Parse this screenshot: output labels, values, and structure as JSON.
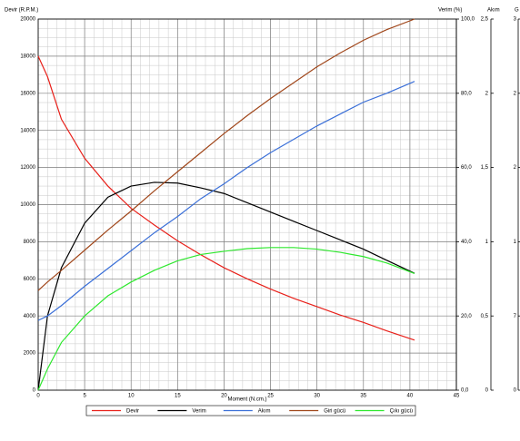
{
  "chart_data": {
    "type": "line",
    "ylabel": "Devir (R.P.M.)",
    "y2label": "Verim (%)",
    "y3label": "Akım",
    "y4label": "G",
    "xlabel": "Moment (N.cm.)",
    "x": [
      0,
      1,
      2.5,
      5,
      7.5,
      10,
      12.5,
      15,
      17.5,
      20,
      22.5,
      25,
      27.5,
      30,
      32.5,
      35,
      37.5,
      40.5
    ],
    "xlim": [
      0,
      45
    ],
    "xticks": [
      0,
      5,
      10,
      15,
      20,
      25,
      30,
      35,
      40,
      45
    ],
    "ylim": [
      0,
      20000
    ],
    "yticks": [
      0,
      2000,
      4000,
      6000,
      8000,
      10000,
      12000,
      14000,
      16000,
      18000,
      20000
    ],
    "y2lim": [
      0,
      100
    ],
    "y2ticks": [
      {
        "value": 0,
        "label": "0,0"
      },
      {
        "value": 20,
        "label": "20,0"
      },
      {
        "value": 40,
        "label": "40,0"
      },
      {
        "value": 60,
        "label": "60,0"
      },
      {
        "value": 80,
        "label": "80,0"
      },
      {
        "value": 100,
        "label": "100,0"
      }
    ],
    "y3lim": [
      0,
      2.5
    ],
    "y3ticks": [
      0,
      {
        "value": 0.5,
        "label": "0,5"
      },
      1,
      {
        "value": 1.5,
        "label": "1,5"
      },
      2,
      {
        "value": 2.5,
        "label": "2,5"
      }
    ],
    "y4lim": [
      0,
      35
    ],
    "y4ticks": [
      0,
      7,
      {
        "value": 14,
        "label": "1"
      },
      {
        "value": 21,
        "label": "2"
      },
      {
        "value": 28,
        "label": "2"
      },
      {
        "value": 35,
        "label": "3"
      }
    ],
    "grid": true,
    "legend": "bottom",
    "series": [
      {
        "name": "Devir",
        "color": "#e8201a",
        "axis": "y",
        "values": [
          18000,
          16900,
          14600,
          12500,
          11000,
          9800,
          8900,
          8050,
          7300,
          6600,
          6000,
          5450,
          4950,
          4500,
          4050,
          3650,
          3200,
          2700
        ]
      },
      {
        "name": "Verim",
        "color": "#000000",
        "axis": "y2",
        "values": [
          0,
          20,
          33,
          45,
          52,
          55,
          56,
          55.8,
          54.5,
          53,
          50.5,
          48,
          45.5,
          43,
          40.5,
          38,
          35,
          31.5
        ]
      },
      {
        "name": "Akım",
        "color": "#3a6fd8",
        "axis": "y3",
        "values": [
          0.47,
          0.5,
          0.57,
          0.7,
          0.82,
          0.94,
          1.06,
          1.17,
          1.29,
          1.39,
          1.5,
          1.6,
          1.69,
          1.78,
          1.86,
          1.94,
          2.0,
          2.08
        ]
      },
      {
        "name": "Giri gücü",
        "color": "#a0461a",
        "axis": "y4",
        "values": [
          9.4,
          10.2,
          11.3,
          13.2,
          15.1,
          16.9,
          18.8,
          20.6,
          22.4,
          24.2,
          25.9,
          27.5,
          29,
          30.5,
          31.8,
          33,
          34,
          35
        ]
      },
      {
        "name": "Çıkı gücü",
        "color": "#2ee82e",
        "axis": "y4",
        "values": [
          0,
          2,
          4.5,
          7,
          8.9,
          10.2,
          11.3,
          12.2,
          12.8,
          13.1,
          13.35,
          13.45,
          13.45,
          13.3,
          13,
          12.6,
          12,
          11
        ]
      }
    ]
  }
}
